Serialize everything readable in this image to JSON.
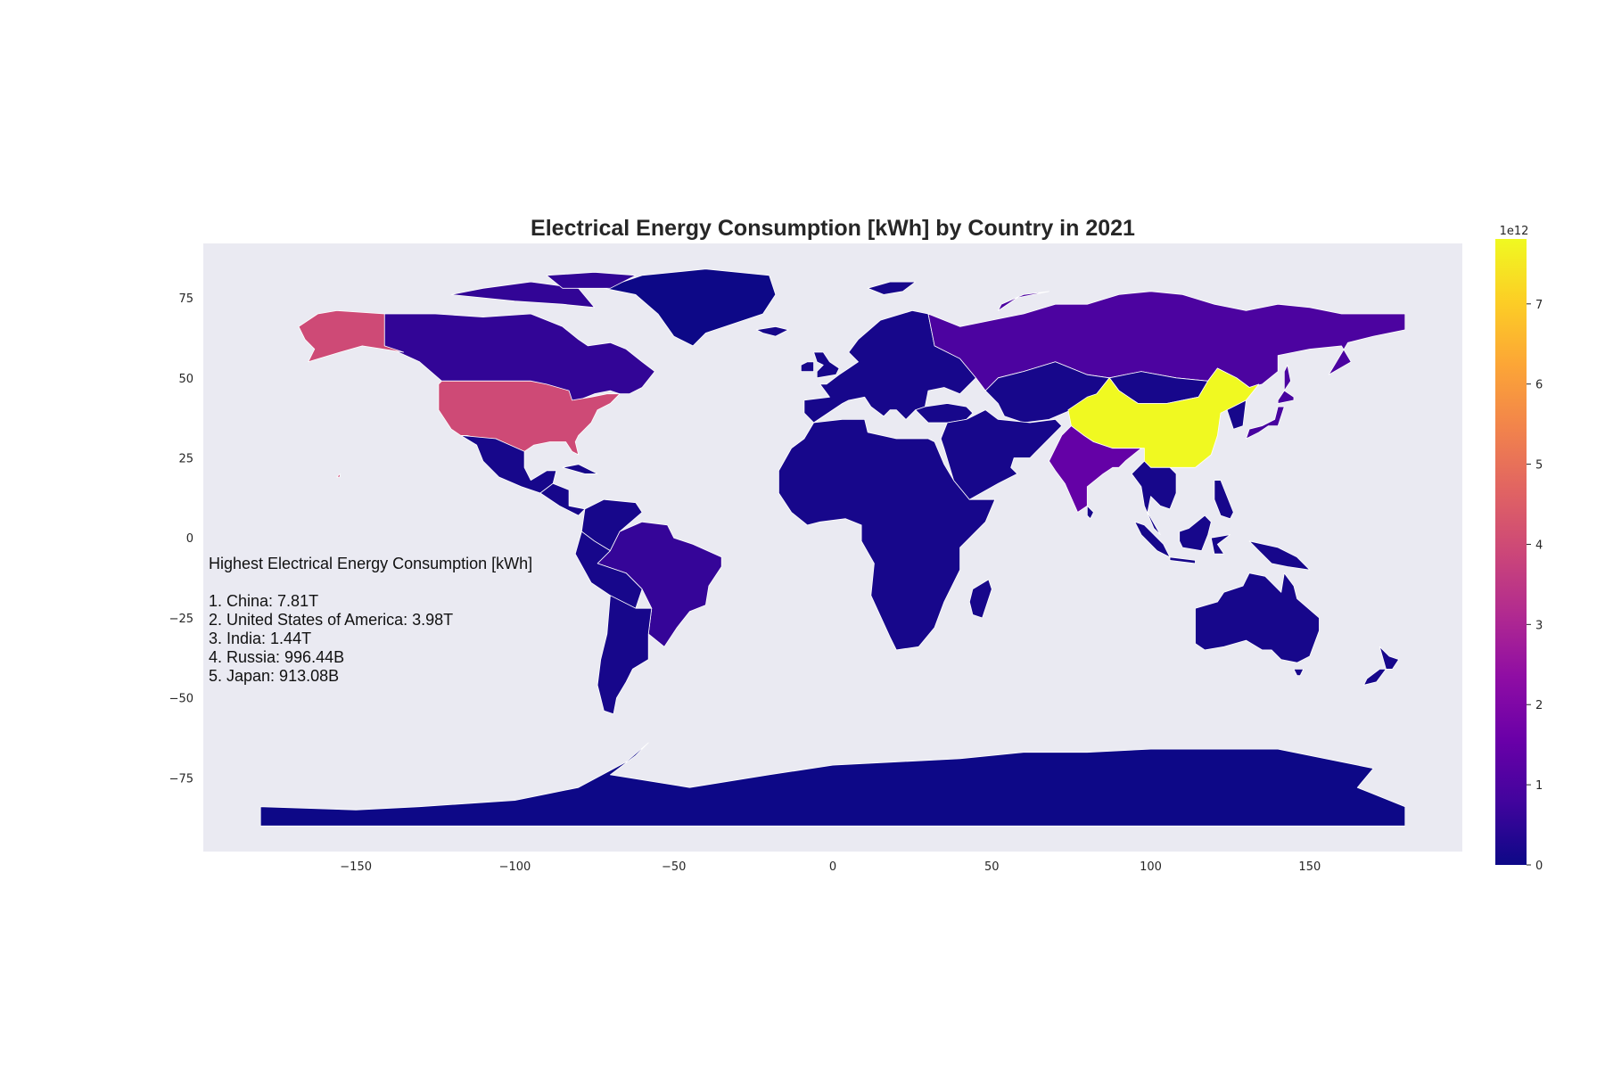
{
  "chart_data": {
    "type": "choropleth",
    "title": "Electrical Energy Consumption [kWh] by Country in 2021",
    "x_ticks": [
      "−150",
      "−100",
      "−50",
      "0",
      "50",
      "100",
      "150"
    ],
    "x_tick_values": [
      -150,
      -100,
      -50,
      0,
      50,
      100,
      150
    ],
    "y_ticks": [
      "75",
      "50",
      "25",
      "0",
      "−25",
      "−50",
      "−75"
    ],
    "y_tick_values": [
      75,
      50,
      25,
      0,
      -25,
      -50,
      -75
    ],
    "xlim": [
      -198,
      198
    ],
    "ylim": [
      -98,
      92
    ],
    "grid": false,
    "background_color": "#eaeaf2",
    "border_color": "#ffffff",
    "colormap": "plasma",
    "colorbar": {
      "min": 0,
      "max": 7.81,
      "multiplier_label": "1e12",
      "ticks": [
        "0",
        "1",
        "2",
        "3",
        "4",
        "5",
        "6",
        "7"
      ],
      "tick_values": [
        0,
        1,
        2,
        3,
        4,
        5,
        6,
        7
      ]
    },
    "regions": [
      {
        "name": "China",
        "value": 7.81
      },
      {
        "name": "United States of America",
        "value": 3.98
      },
      {
        "name": "India",
        "value": 1.44
      },
      {
        "name": "Russia",
        "value": 0.99644
      },
      {
        "name": "Japan",
        "value": 0.91308
      },
      {
        "name": "Brazil",
        "value": 0.6
      },
      {
        "name": "Canada",
        "value": 0.55
      },
      {
        "name": "Greenland",
        "value": 0.0
      },
      {
        "name": "Antarctica",
        "value": 0.0
      }
    ],
    "annotation": {
      "heading": "Highest Electrical Energy Consumption [kWh]",
      "lines": [
        "1. China: 7.81T",
        "2. United States of America: 3.98T",
        "3. India: 1.44T",
        "4. Russia: 996.44B",
        "5. Japan: 913.08B"
      ]
    }
  }
}
